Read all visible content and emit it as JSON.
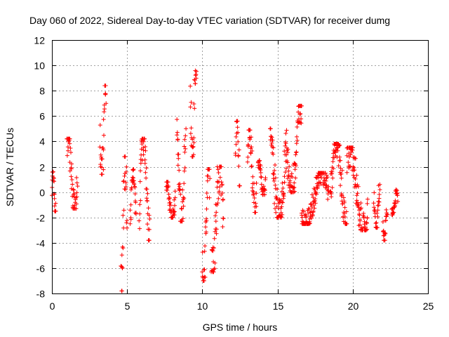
{
  "chart_data": {
    "type": "scatter",
    "title": "Day 060 of 2022, Sidereal Day-to-day VTEC variation (SDTVAR) for receiver dumg",
    "xlabel": "GPS time / hours",
    "ylabel": "SDTVAR / TECUs",
    "xlim": [
      0,
      25
    ],
    "ylim": [
      -8,
      12
    ],
    "x_ticks": [
      0,
      5,
      10,
      15,
      20,
      25
    ],
    "x_tick_labels": [
      "0",
      "5",
      "10",
      "15",
      "20",
      "25"
    ],
    "y_ticks": [
      -8,
      -6,
      -4,
      -2,
      0,
      2,
      4,
      6,
      8,
      10,
      12
    ],
    "y_tick_labels": [
      "-8",
      "-6",
      "-4",
      "-2",
      "0",
      "2",
      "4",
      "6",
      "8",
      "10",
      "12"
    ],
    "grid": true,
    "marker": "plus",
    "color": "#ff0000",
    "clusters": [
      {
        "x": [
          0.0,
          0.25
        ],
        "y": [
          -1.5,
          1.6
        ]
      },
      {
        "x": [
          1.0,
          1.7
        ],
        "y": [
          -1.3,
          4.2
        ]
      },
      {
        "x": [
          3.2,
          3.6
        ],
        "y": [
          1.4,
          8.4
        ]
      },
      {
        "x": [
          4.6,
          5.0
        ],
        "y": [
          -7.8,
          2.8
        ]
      },
      {
        "x": [
          5.2,
          5.6
        ],
        "y": [
          -2.5,
          1.8
        ]
      },
      {
        "x": [
          5.8,
          6.5
        ],
        "y": [
          -3.8,
          4.2
        ]
      },
      {
        "x": [
          7.6,
          8.2
        ],
        "y": [
          -2.0,
          0.8
        ]
      },
      {
        "x": [
          8.3,
          8.9
        ],
        "y": [
          -2.3,
          6.0
        ]
      },
      {
        "x": [
          9.2,
          9.6
        ],
        "y": [
          2.8,
          10.5
        ]
      },
      {
        "x": [
          10.0,
          10.5
        ],
        "y": [
          -7.0,
          1.8
        ]
      },
      {
        "x": [
          10.6,
          11.4
        ],
        "y": [
          -6.3,
          2.0
        ]
      },
      {
        "x": [
          12.2,
          12.5
        ],
        "y": [
          0.5,
          5.6
        ]
      },
      {
        "x": [
          13.0,
          13.6
        ],
        "y": [
          -1.6,
          4.9
        ]
      },
      {
        "x": [
          13.7,
          14.2
        ],
        "y": [
          -0.2,
          2.5
        ]
      },
      {
        "x": [
          14.5,
          15.6
        ],
        "y": [
          -2.0,
          5.0
        ]
      },
      {
        "x": [
          15.6,
          16.6
        ],
        "y": [
          0.0,
          6.8
        ]
      },
      {
        "x": [
          16.6,
          18.4
        ],
        "y": [
          -2.5,
          1.5
        ]
      },
      {
        "x": [
          18.5,
          19.6
        ],
        "y": [
          -2.5,
          3.8
        ]
      },
      {
        "x": [
          19.6,
          21.0
        ],
        "y": [
          -3.0,
          3.5
        ]
      },
      {
        "x": [
          21.4,
          21.8
        ],
        "y": [
          -2.8,
          0.6
        ]
      },
      {
        "x": [
          22.0,
          22.3
        ],
        "y": [
          -3.8,
          -1.2
        ]
      },
      {
        "x": [
          22.6,
          23.0
        ],
        "y": [
          -1.8,
          0.2
        ]
      }
    ]
  }
}
